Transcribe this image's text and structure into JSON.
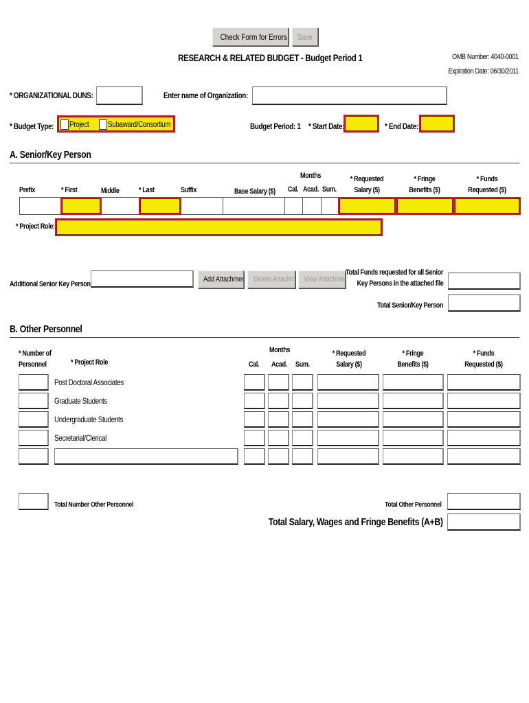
{
  "toolbar": {
    "check_label": "Check Form for Errors",
    "save_label": "Save"
  },
  "header": {
    "title": "RESEARCH & RELATED BUDGET - Budget Period 1",
    "omb": "OMB Number: 4040-0001",
    "expiration": "Expiration Date: 06/30/2011"
  },
  "org": {
    "duns_label": "* ORGANIZATIONAL DUNS:",
    "duns_value": "",
    "name_label": "Enter name of Organization:",
    "name_value": ""
  },
  "budget": {
    "type_label": "* Budget Type:",
    "opt_project": "Project",
    "opt_subaward": "Subaward/Consortium",
    "period_label": "Budget Period: 1",
    "start_label": "* Start Date:",
    "end_label": "* End Date:",
    "required_color": "#f5eb00",
    "error_border_color": "#c81e1e"
  },
  "sectionA": {
    "heading": "A. Senior/Key Person",
    "months": "Months",
    "cols": [
      "Prefix",
      "* First",
      "Middle",
      "* Last",
      "Suffix",
      "Base Salary ($)",
      "Cal.",
      "Acad.",
      "Sum."
    ],
    "req1": "* Requested",
    "req2": "Salary ($)",
    "fr1": "* Fringe",
    "fr2": "Benefits ($)",
    "fu1": "* Funds",
    "fu2": "Requested ($)",
    "role_label": "* Project Role:",
    "additional_label": "Additional Senior Key Persons:",
    "add_attachment": "Add Attachment",
    "delete_attachment": "Delete Attachment",
    "view_attachment": "View Attachment",
    "total_funds_1": "Total Funds requested for all Senior",
    "total_funds_2": "Key Persons in the attached file",
    "total_senior": "Total Senior/Key Person"
  },
  "sectionB": {
    "heading": "B. Other Personnel",
    "num1": "* Number of",
    "num2": "Personnel",
    "role": "* Project Role",
    "months": "Months",
    "cal": "Cal.",
    "acad": "Acad.",
    "sum": "Sum.",
    "req1": "* Requested",
    "req2": "Salary ($)",
    "fr1": "* Fringe",
    "fr2": "Benefits ($)",
    "fu1": "* Funds",
    "fu2": "Requested ($)",
    "rows": [
      "Post Doctoral Associates",
      "Graduate Students",
      "Undergraduate Students",
      "Secretarial/Clerical"
    ],
    "total_number": "Total Number Other Personnel",
    "total_other": "Total Other Personnel",
    "total_salary": "Total Salary, Wages and Fringe Benefits (A+B)"
  }
}
